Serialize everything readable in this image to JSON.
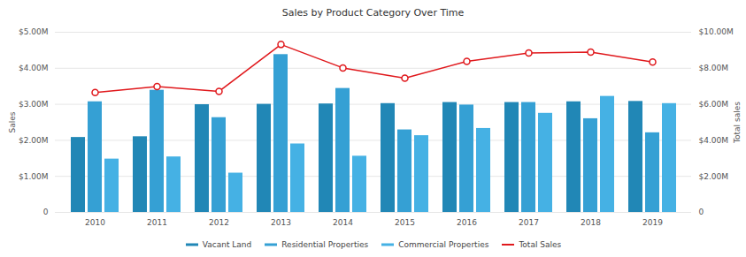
{
  "chart_data": {
    "type": "bar",
    "title": "Sales by Product Category Over Time",
    "categories": [
      "2010",
      "2011",
      "2012",
      "2013",
      "2014",
      "2015",
      "2016",
      "2017",
      "2018",
      "2019"
    ],
    "series": [
      {
        "name": "Vacant Land",
        "color": "#2187b6",
        "values": [
          2080000,
          2100000,
          2990000,
          3000000,
          3010000,
          3020000,
          3050000,
          3050000,
          3070000,
          3080000
        ]
      },
      {
        "name": "Residential Properties",
        "color": "#35a0d4",
        "values": [
          3070000,
          3390000,
          2630000,
          4380000,
          3440000,
          2290000,
          2980000,
          3050000,
          2600000,
          2210000
        ]
      },
      {
        "name": "Commercial Properties",
        "color": "#45b1e4",
        "values": [
          1480000,
          1540000,
          1090000,
          1900000,
          1560000,
          2130000,
          2330000,
          2750000,
          3220000,
          3020000
        ]
      },
      {
        "name": "Total Sales",
        "color": "#e0191d",
        "type": "line",
        "marker": "circle",
        "axis": "y2",
        "values": [
          6650000,
          6980000,
          6720000,
          9320000,
          8020000,
          7450000,
          8380000,
          8850000,
          8900000,
          8350000
        ]
      }
    ],
    "ylabel": "Sales",
    "y2label": "Total sales",
    "ylim": [
      0,
      5000000
    ],
    "yticks": [
      0,
      {
        "value": 1000000,
        "label": "$1.00M"
      },
      {
        "value": 2000000,
        "label": "$2.00M"
      },
      {
        "value": 3000000,
        "label": "$3.00M"
      },
      {
        "value": 4000000,
        "label": "$4.00M"
      },
      {
        "value": 5000000,
        "label": "$5.00M"
      }
    ],
    "y2lim": [
      0,
      10000000
    ],
    "y2ticks": [
      0,
      {
        "value": 2000000,
        "label": "$2.00M"
      },
      {
        "value": 4000000,
        "label": "$4.00M"
      },
      {
        "value": 6000000,
        "label": "$6.00M"
      },
      {
        "value": 8000000,
        "label": "$8.00M"
      },
      {
        "value": 10000000,
        "label": "$10.00M"
      }
    ],
    "grid": true,
    "legend": "bottom"
  }
}
